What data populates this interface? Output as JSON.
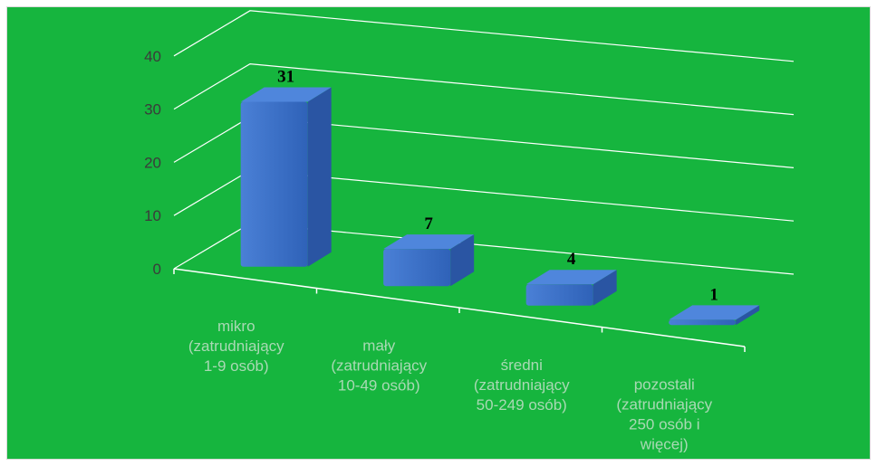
{
  "chart_data": {
    "type": "bar",
    "style": "3d-column",
    "categories": [
      [
        "mikro",
        "(zatrudniający",
        "1-9 osób)"
      ],
      [
        "mały",
        "(zatrudniający",
        "10-49 osób)"
      ],
      [
        "średni",
        "(zatrudniający",
        "50-249 osób)"
      ],
      [
        "pozostali",
        "(zatrudniający",
        "250 osób i",
        "więcej)"
      ]
    ],
    "values": [
      31,
      7,
      4,
      1
    ],
    "data_labels": [
      "31",
      "7",
      "4",
      "1"
    ],
    "ylim": [
      0,
      40
    ],
    "yticks": [
      "0",
      "10",
      "20",
      "30",
      "40"
    ],
    "grid": true,
    "legend": "none",
    "colors": {
      "background": "#16b53e",
      "bar_front": "#3a6fc8",
      "bar_top": "#4f86dc",
      "bar_side": "#2a55a3",
      "gridline": "#ffffff",
      "tick_text": "#3b3b3b",
      "category_text": "#a9d9b4"
    }
  }
}
